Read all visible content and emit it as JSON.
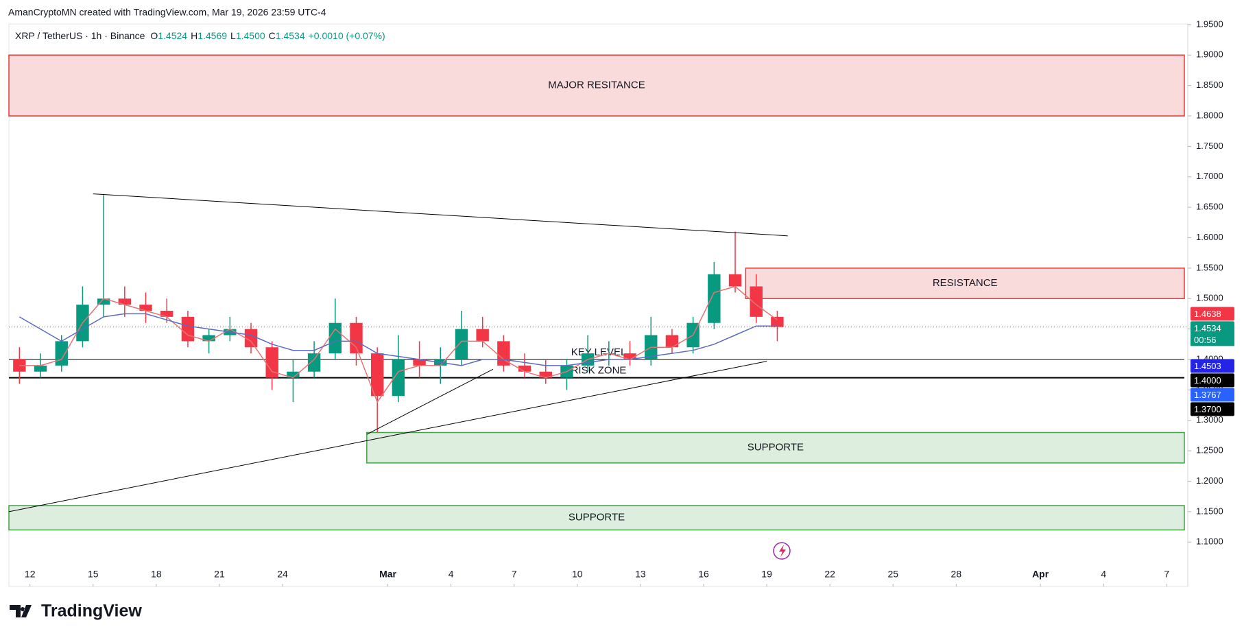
{
  "attribution": "AmanCryptoMN created with TradingView.com, Mar 19, 2026 23:59 UTC-4",
  "footer_brand": "TradingView",
  "chart_data": {
    "type": "candlestick",
    "title": "XRP / TetherUS · 1h · Binance",
    "ohlc": [
      {
        "key": "O",
        "label": "1.4524"
      },
      {
        "key": "H",
        "label": "1.4569"
      },
      {
        "key": "L",
        "label": "1.4500"
      },
      {
        "key": "C",
        "label": "1.4534"
      }
    ],
    "change": "+0.0010 (+0.07%)",
    "up_color": "#089981",
    "down_color": "#f23645",
    "x": [
      "2026-02-11",
      "2026-02-12",
      "2026-02-13",
      "2026-02-14",
      "2026-02-15",
      "2026-02-16",
      "2026-02-17",
      "2026-02-18",
      "2026-02-19",
      "2026-02-20",
      "2026-02-21",
      "2026-02-22",
      "2026-02-23",
      "2026-02-24",
      "2026-02-25",
      "2026-02-26",
      "2026-02-27",
      "2026-02-28",
      "2026-03-01",
      "2026-03-02",
      "2026-03-03",
      "2026-03-04",
      "2026-03-05",
      "2026-03-06",
      "2026-03-07",
      "2026-03-08",
      "2026-03-09",
      "2026-03-10",
      "2026-03-11",
      "2026-03-12",
      "2026-03-13",
      "2026-03-14",
      "2026-03-15",
      "2026-03-16",
      "2026-03-17",
      "2026-03-18",
      "2026-03-19"
    ],
    "open": [
      1.4,
      1.38,
      1.39,
      1.43,
      1.49,
      1.5,
      1.49,
      1.48,
      1.47,
      1.43,
      1.44,
      1.45,
      1.42,
      1.37,
      1.38,
      1.41,
      1.46,
      1.41,
      1.34,
      1.4,
      1.39,
      1.4,
      1.45,
      1.43,
      1.39,
      1.38,
      1.37,
      1.39,
      1.41,
      1.41,
      1.4,
      1.44,
      1.42,
      1.46,
      1.54,
      1.52,
      1.47
    ],
    "high": [
      1.42,
      1.41,
      1.44,
      1.52,
      1.67,
      1.52,
      1.51,
      1.5,
      1.48,
      1.45,
      1.47,
      1.46,
      1.43,
      1.4,
      1.43,
      1.5,
      1.47,
      1.42,
      1.44,
      1.43,
      1.42,
      1.48,
      1.47,
      1.44,
      1.41,
      1.4,
      1.4,
      1.44,
      1.43,
      1.43,
      1.47,
      1.45,
      1.47,
      1.56,
      1.61,
      1.54,
      1.48
    ],
    "low": [
      1.36,
      1.37,
      1.38,
      1.42,
      1.47,
      1.47,
      1.46,
      1.46,
      1.42,
      1.41,
      1.43,
      1.41,
      1.35,
      1.33,
      1.37,
      1.4,
      1.39,
      1.28,
      1.33,
      1.37,
      1.36,
      1.39,
      1.42,
      1.38,
      1.37,
      1.36,
      1.35,
      1.38,
      1.39,
      1.39,
      1.39,
      1.41,
      1.41,
      1.45,
      1.51,
      1.46,
      1.43
    ],
    "close": [
      1.38,
      1.39,
      1.43,
      1.49,
      1.5,
      1.49,
      1.48,
      1.47,
      1.43,
      1.44,
      1.45,
      1.42,
      1.37,
      1.38,
      1.41,
      1.46,
      1.41,
      1.34,
      1.4,
      1.39,
      1.4,
      1.45,
      1.43,
      1.39,
      1.38,
      1.37,
      1.39,
      1.41,
      1.41,
      1.4,
      1.44,
      1.42,
      1.46,
      1.54,
      1.52,
      1.47,
      1.4534
    ],
    "overlays": [
      {
        "color": "#e57373",
        "values": [
          1.39,
          1.39,
          1.4,
          1.46,
          1.5,
          1.49,
          1.48,
          1.47,
          1.44,
          1.43,
          1.45,
          1.43,
          1.38,
          1.37,
          1.4,
          1.45,
          1.42,
          1.33,
          1.38,
          1.39,
          1.39,
          1.43,
          1.43,
          1.4,
          1.38,
          1.37,
          1.38,
          1.4,
          1.41,
          1.4,
          1.42,
          1.42,
          1.44,
          1.51,
          1.52,
          1.49,
          1.465
        ]
      },
      {
        "color": "#5c6bc0",
        "values": [
          1.47,
          1.45,
          1.43,
          1.45,
          1.47,
          1.475,
          1.475,
          1.465,
          1.455,
          1.45,
          1.445,
          1.44,
          1.425,
          1.415,
          1.415,
          1.43,
          1.43,
          1.41,
          1.405,
          1.4,
          1.395,
          1.39,
          1.4,
          1.4,
          1.395,
          1.39,
          1.39,
          1.395,
          1.4,
          1.4,
          1.405,
          1.41,
          1.415,
          1.425,
          1.44,
          1.455,
          1.455
        ]
      }
    ],
    "xlim": [
      "2026-02-11",
      "2026-04-08"
    ],
    "xticks": [
      {
        "value": "2026-02-12",
        "label": "12"
      },
      {
        "value": "2026-02-15",
        "label": "15"
      },
      {
        "value": "2026-02-18",
        "label": "18"
      },
      {
        "value": "2026-02-21",
        "label": "21"
      },
      {
        "value": "2026-02-24",
        "label": "24"
      },
      {
        "value": "2026-03-01",
        "label": "Mar"
      },
      {
        "value": "2026-03-04",
        "label": "4"
      },
      {
        "value": "2026-03-07",
        "label": "7"
      },
      {
        "value": "2026-03-10",
        "label": "10"
      },
      {
        "value": "2026-03-13",
        "label": "13"
      },
      {
        "value": "2026-03-16",
        "label": "16"
      },
      {
        "value": "2026-03-19",
        "label": "19"
      },
      {
        "value": "2026-03-22",
        "label": "22"
      },
      {
        "value": "2026-03-25",
        "label": "25"
      },
      {
        "value": "2026-03-28",
        "label": "28"
      },
      {
        "value": "2026-04-01",
        "label": "Apr"
      },
      {
        "value": "2026-04-04",
        "label": "4"
      },
      {
        "value": "2026-04-07",
        "label": "7"
      }
    ],
    "ylim": [
      1.027,
      1.951
    ],
    "yticks": [
      {
        "value": 1.1,
        "label": "1.1000"
      },
      {
        "value": 1.15,
        "label": "1.1500"
      },
      {
        "value": 1.2,
        "label": "1.2000"
      },
      {
        "value": 1.25,
        "label": "1.2500"
      },
      {
        "value": 1.3,
        "label": "1.3000"
      },
      {
        "value": 1.35,
        "label": "1.3500"
      },
      {
        "value": 1.4,
        "label": "1.4000"
      },
      {
        "value": 1.45,
        "label": "1.4500"
      },
      {
        "value": 1.5,
        "label": "1.5000"
      },
      {
        "value": 1.55,
        "label": "1.5500"
      },
      {
        "value": 1.6,
        "label": "1.6000"
      },
      {
        "value": 1.65,
        "label": "1.6500"
      },
      {
        "value": 1.7,
        "label": "1.7000"
      },
      {
        "value": 1.75,
        "label": "1.7500"
      },
      {
        "value": 1.8,
        "label": "1.8000"
      },
      {
        "value": 1.85,
        "label": "1.8500"
      },
      {
        "value": 1.9,
        "label": "1.9000"
      },
      {
        "value": 1.95,
        "label": "1.9500"
      }
    ],
    "grid": false,
    "zones": [
      {
        "label": "MAJOR RESITANCE",
        "low": 1.8,
        "high": 1.9,
        "color": "#e53935"
      },
      {
        "label": "RESISTANCE",
        "low": 1.5,
        "high": 1.55,
        "from": "2026-03-18",
        "color": "#e53935"
      },
      {
        "label": "SUPPORTE",
        "low": 1.23,
        "high": 1.28,
        "from": "2026-02-28",
        "color": "#43a047"
      },
      {
        "label": "SUPPORTE",
        "low": 1.12,
        "high": 1.16,
        "color": "#43a047"
      }
    ],
    "levels": [
      {
        "label": "KEY LEVEL",
        "value": 1.4,
        "width": 1
      },
      {
        "label": "RISK ZONE",
        "value": 1.37,
        "width": 2
      }
    ],
    "trendlines": [
      {
        "points": [
          [
            "2026-02-15",
            1.672
          ],
          [
            "2026-03-20",
            1.603
          ]
        ]
      },
      {
        "points": [
          [
            "2026-02-11",
            1.15
          ],
          [
            "2026-03-19",
            1.397
          ]
        ]
      },
      {
        "points": [
          [
            "2026-02-28",
            1.277
          ],
          [
            "2026-03-06",
            1.384
          ]
        ]
      }
    ],
    "price_tags": [
      {
        "value": 1.4638,
        "color": "#f23645"
      },
      {
        "value": 1.4534,
        "color": "#089981"
      },
      {
        "value": 1.4503,
        "color": "#2424e6"
      },
      {
        "value": 1.4,
        "label": "1.4000",
        "color": "#000000"
      },
      {
        "value": 1.3767,
        "color": "#2962ff"
      },
      {
        "value": 1.37,
        "label": "1.3700",
        "color": "#000000"
      }
    ],
    "countdown": "00:56"
  }
}
